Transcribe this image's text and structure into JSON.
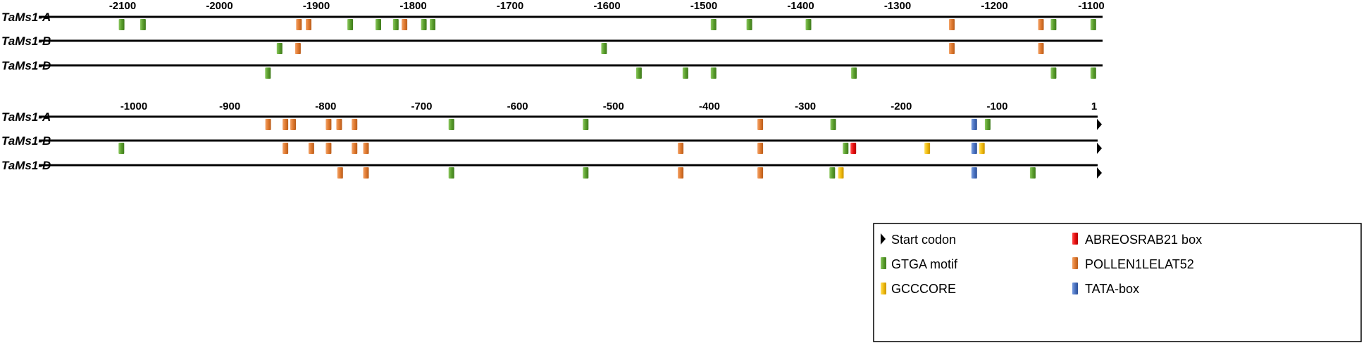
{
  "figure": {
    "panels": [
      {
        "axis_min": -2100,
        "axis_max": -1100,
        "ticks": [
          "-2100",
          "-2000",
          "-1900",
          "-1800",
          "-1700",
          "-1600",
          "-1500",
          "-1400",
          "-1300",
          "-1200",
          "-1100"
        ],
        "tracks": [
          {
            "gene": "TaMs1-A",
            "start_codon": false,
            "elements": [
              {
                "pos": -2101,
                "type": "gtga"
              },
              {
                "pos": -2079,
                "type": "gtga"
              },
              {
                "pos": -1918,
                "type": "pollen"
              },
              {
                "pos": -1908,
                "type": "pollen"
              },
              {
                "pos": -1865,
                "type": "gtga"
              },
              {
                "pos": -1836,
                "type": "gtga"
              },
              {
                "pos": -1818,
                "type": "gtga"
              },
              {
                "pos": -1809,
                "type": "pollen"
              },
              {
                "pos": -1789,
                "type": "gtga"
              },
              {
                "pos": -1780,
                "type": "gtga"
              },
              {
                "pos": -1490,
                "type": "gtga"
              },
              {
                "pos": -1453,
                "type": "gtga"
              },
              {
                "pos": -1392,
                "type": "gtga"
              },
              {
                "pos": -1244,
                "type": "pollen"
              },
              {
                "pos": -1152,
                "type": "pollen"
              },
              {
                "pos": -1139,
                "type": "gtga"
              },
              {
                "pos": -1098,
                "type": "gtga"
              }
            ]
          },
          {
            "gene": "TaMs1-B",
            "start_codon": false,
            "elements": [
              {
                "pos": -1938,
                "type": "gtga"
              },
              {
                "pos": -1919,
                "type": "pollen"
              },
              {
                "pos": -1603,
                "type": "gtga"
              },
              {
                "pos": -1244,
                "type": "pollen"
              },
              {
                "pos": -1152,
                "type": "pollen"
              }
            ]
          },
          {
            "gene": "TaMs1-D",
            "start_codon": false,
            "elements": [
              {
                "pos": -1950,
                "type": "gtga"
              },
              {
                "pos": -1567,
                "type": "gtga"
              },
              {
                "pos": -1519,
                "type": "gtga"
              },
              {
                "pos": -1490,
                "type": "gtga"
              },
              {
                "pos": -1345,
                "type": "gtga"
              },
              {
                "pos": -1139,
                "type": "gtga"
              },
              {
                "pos": -1098,
                "type": "gtga"
              }
            ]
          }
        ]
      },
      {
        "axis_min": -1000,
        "axis_max": 1,
        "ticks": [
          "-1000",
          "-900",
          "-800",
          "-700",
          "-600",
          "-500",
          "-400",
          "-300",
          "-200",
          "-100",
          "1"
        ],
        "tracks": [
          {
            "gene": "TaMs1-A",
            "start_codon": true,
            "elements": [
              {
                "pos": -860,
                "type": "pollen"
              },
              {
                "pos": -842,
                "type": "pollen"
              },
              {
                "pos": -834,
                "type": "pollen"
              },
              {
                "pos": -797,
                "type": "pollen"
              },
              {
                "pos": -786,
                "type": "pollen"
              },
              {
                "pos": -770,
                "type": "pollen"
              },
              {
                "pos": -669,
                "type": "gtga"
              },
              {
                "pos": -529,
                "type": "gtga"
              },
              {
                "pos": -347,
                "type": "pollen"
              },
              {
                "pos": -271,
                "type": "gtga"
              },
              {
                "pos": -124,
                "type": "tata"
              },
              {
                "pos": -110,
                "type": "gtga"
              }
            ]
          },
          {
            "gene": "TaMs1-B",
            "start_codon": true,
            "elements": [
              {
                "pos": -1013,
                "type": "gtga"
              },
              {
                "pos": -842,
                "type": "pollen"
              },
              {
                "pos": -815,
                "type": "pollen"
              },
              {
                "pos": -797,
                "type": "pollen"
              },
              {
                "pos": -770,
                "type": "pollen"
              },
              {
                "pos": -758,
                "type": "pollen"
              },
              {
                "pos": -430,
                "type": "pollen"
              },
              {
                "pos": -347,
                "type": "pollen"
              },
              {
                "pos": -258,
                "type": "gtga"
              },
              {
                "pos": -250,
                "type": "abre"
              },
              {
                "pos": -173,
                "type": "gcc"
              },
              {
                "pos": -124,
                "type": "tata"
              },
              {
                "pos": -116,
                "type": "gcc"
              }
            ]
          },
          {
            "gene": "TaMs1-D",
            "start_codon": true,
            "elements": [
              {
                "pos": -785,
                "type": "pollen"
              },
              {
                "pos": -758,
                "type": "pollen"
              },
              {
                "pos": -669,
                "type": "gtga"
              },
              {
                "pos": -529,
                "type": "gtga"
              },
              {
                "pos": -430,
                "type": "pollen"
              },
              {
                "pos": -347,
                "type": "pollen"
              },
              {
                "pos": -272,
                "type": "gtga"
              },
              {
                "pos": -263,
                "type": "gcc"
              },
              {
                "pos": -124,
                "type": "tata"
              },
              {
                "pos": -63,
                "type": "gtga"
              }
            ]
          }
        ]
      }
    ]
  },
  "legend": {
    "start_codon": "Start codon",
    "items": [
      {
        "key": "abre",
        "label": "ABREOSRAB21 box",
        "color": "#ee1c1c"
      },
      {
        "key": "gtga",
        "label": "GTGA motif",
        "color": "#6aaa3a"
      },
      {
        "key": "pollen",
        "label": "POLLEN1LELAT52",
        "color": "#e8843e"
      },
      {
        "key": "gcc",
        "label": "GCCCORE",
        "color": "#f2c21b"
      },
      {
        "key": "tata",
        "label": "TATA-box",
        "color": "#4a74c4"
      }
    ]
  },
  "colors": {
    "gtga": "#6aaa3a",
    "pollen": "#e8843e",
    "abre": "#ee1c1c",
    "gcc": "#f2c21b",
    "tata": "#4a74c4",
    "line": "#000000"
  }
}
